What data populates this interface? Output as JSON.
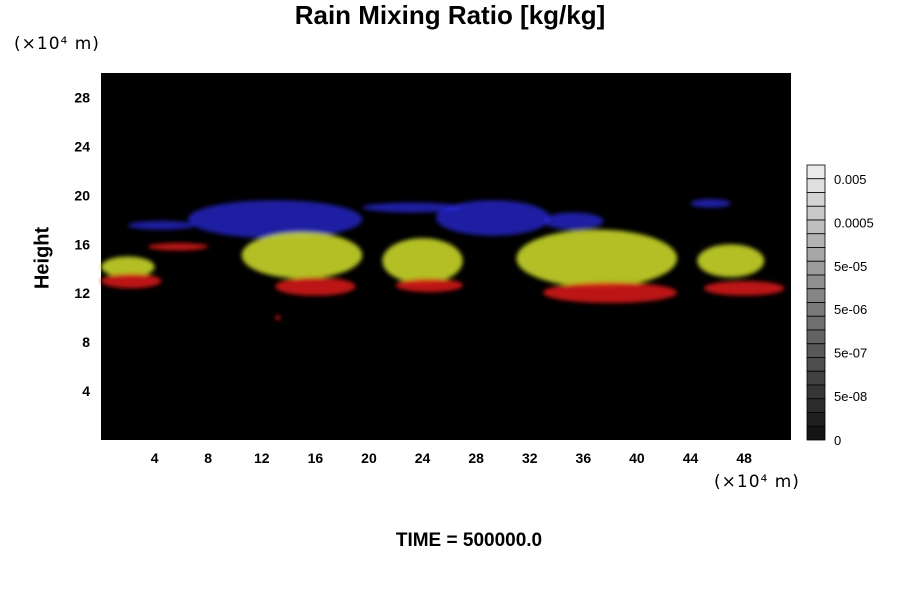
{
  "chart_data": {
    "type": "heatmap",
    "title": "Rain Mixing Ratio [kg/kg]",
    "xlabel": "",
    "ylabel": "Height",
    "x_unit": "(×10⁴ m)",
    "y_unit": "(×10⁴ m)",
    "xlim": [
      0,
      51.5
    ],
    "ylim": [
      0,
      30
    ],
    "xticks": [
      4,
      8,
      12,
      16,
      20,
      24,
      28,
      32,
      36,
      40,
      44,
      48
    ],
    "yticks": [
      4,
      8,
      12,
      16,
      20,
      24,
      28
    ],
    "colorbar": {
      "labels": [
        "0.005",
        "0.0005",
        "5e-05",
        "5e-06",
        "5e-07",
        "5e-08",
        "0"
      ],
      "scale": "log"
    },
    "background_color": "#000000",
    "feature_colors": {
      "upper": "#2a2ad8",
      "middle": "#c6d42a",
      "lower": "#d01a14"
    },
    "features": [
      {
        "layer": "upper",
        "x_range": [
          2,
          7
        ],
        "y_range": [
          17.2,
          17.9
        ]
      },
      {
        "layer": "upper",
        "x_range": [
          6.5,
          19.5
        ],
        "y_range": [
          16.5,
          19.6
        ]
      },
      {
        "layer": "upper",
        "x_range": [
          19.5,
          27
        ],
        "y_range": [
          18.6,
          19.4
        ]
      },
      {
        "layer": "upper",
        "x_range": [
          25,
          33.5
        ],
        "y_range": [
          16.7,
          19.6
        ]
      },
      {
        "layer": "upper",
        "x_range": [
          33,
          37.5
        ],
        "y_range": [
          17.2,
          18.6
        ]
      },
      {
        "layer": "upper",
        "x_range": [
          44,
          47
        ],
        "y_range": [
          19,
          19.7
        ]
      },
      {
        "layer": "middle",
        "x_range": [
          0,
          4
        ],
        "y_range": [
          13.3,
          15
        ]
      },
      {
        "layer": "middle",
        "x_range": [
          10.5,
          19.5
        ],
        "y_range": [
          13.2,
          17
        ]
      },
      {
        "layer": "middle",
        "x_range": [
          21,
          27
        ],
        "y_range": [
          12.8,
          16.5
        ]
      },
      {
        "layer": "middle",
        "x_range": [
          31,
          43
        ],
        "y_range": [
          12.5,
          17.2
        ]
      },
      {
        "layer": "middle",
        "x_range": [
          44.5,
          49.5
        ],
        "y_range": [
          13.3,
          16
        ]
      },
      {
        "layer": "lower",
        "x_range": [
          0,
          4.5
        ],
        "y_range": [
          12.4,
          13.6
        ]
      },
      {
        "layer": "lower",
        "x_range": [
          3.5,
          8
        ],
        "y_range": [
          15.5,
          16.1
        ]
      },
      {
        "layer": "lower",
        "x_range": [
          13,
          19
        ],
        "y_range": [
          11.8,
          13.3
        ]
      },
      {
        "layer": "lower",
        "x_range": [
          22,
          27
        ],
        "y_range": [
          12.1,
          13.2
        ]
      },
      {
        "layer": "lower",
        "x_range": [
          33,
          43
        ],
        "y_range": [
          11.2,
          12.9
        ]
      },
      {
        "layer": "lower",
        "x_range": [
          45,
          51
        ],
        "y_range": [
          11.8,
          13
        ]
      },
      {
        "layer": "lower",
        "x_range": [
          13,
          13.4
        ],
        "y_range": [
          9.8,
          10.2
        ]
      }
    ]
  },
  "footer": "TIME = 500000.0"
}
